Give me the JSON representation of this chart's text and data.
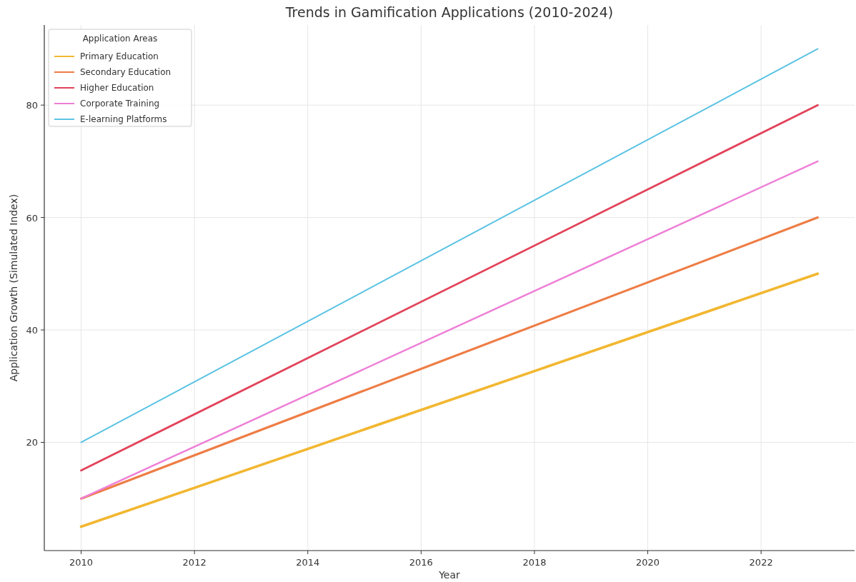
{
  "chart_data": {
    "type": "line",
    "title": "Trends in Gamification Applications (2010-2024)",
    "xlabel": "Year",
    "ylabel": "Application Growth (Simulated Index)",
    "legend_title": "Application Areas",
    "x": [
      2010,
      2023
    ],
    "series": [
      {
        "name": "Primary Education",
        "color": "#f2b731",
        "values": [
          5,
          50
        ]
      },
      {
        "name": "Secondary Education",
        "color": "#ee7d45",
        "values": [
          10,
          60
        ]
      },
      {
        "name": "Higher Education",
        "color": "#e2435a",
        "values": [
          15,
          80
        ]
      },
      {
        "name": "Corporate Training",
        "color": "#ee7fd6",
        "values": [
          10,
          70
        ]
      },
      {
        "name": "E-learning Platforms",
        "color": "#5bc3e3",
        "values": [
          20,
          90
        ]
      }
    ],
    "xlim": [
      2009.35,
      2023.65
    ],
    "ylim": [
      0.75,
      94.25
    ],
    "xticks": [
      2010,
      2012,
      2014,
      2016,
      2018,
      2020,
      2022
    ],
    "yticks": [
      20,
      40,
      60,
      80
    ],
    "grid": true,
    "legend": "top left",
    "marker": "none",
    "line_style": "solid"
  }
}
